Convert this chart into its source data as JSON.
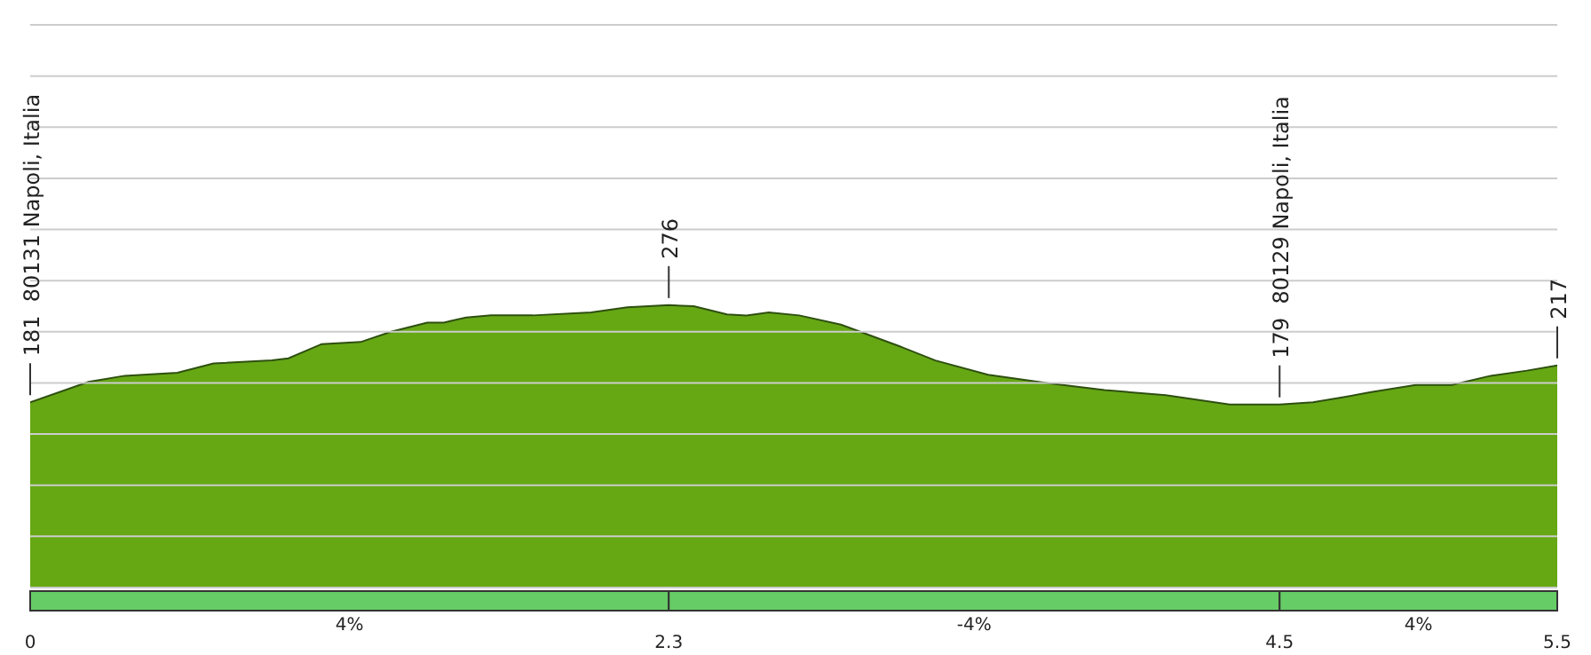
{
  "chart_data": {
    "type": "area",
    "x": [
      0,
      0.21,
      0.34,
      0.53,
      0.66,
      0.87,
      0.93,
      1.05,
      1.19,
      1.3,
      1.43,
      1.49,
      1.57,
      1.66,
      1.81,
      2.02,
      2.15,
      2.3,
      2.39,
      2.51,
      2.58,
      2.66,
      2.77,
      2.92,
      3.13,
      3.26,
      3.45,
      3.66,
      3.87,
      4.09,
      4.32,
      4.5,
      4.62,
      4.73,
      4.83,
      4.99,
      5.12,
      5.26,
      5.39,
      5.5
    ],
    "values": [
      181,
      201,
      207,
      210,
      219,
      222,
      224,
      238,
      240,
      250,
      259,
      259,
      264,
      266,
      266,
      269,
      274,
      276,
      275,
      267,
      266,
      269,
      266,
      257,
      236,
      222,
      208,
      200,
      193,
      188,
      179,
      179,
      181,
      186,
      191,
      198,
      198,
      207,
      212,
      217
    ],
    "value_labels": [
      "181  80131 Napoli, Italia",
      null,
      null,
      null,
      null,
      null,
      null,
      null,
      null,
      null,
      null,
      null,
      null,
      null,
      null,
      null,
      null,
      "276",
      null,
      null,
      null,
      null,
      null,
      null,
      null,
      null,
      null,
      null,
      null,
      null,
      null,
      "179  80129 Napoli, Italia",
      null,
      null,
      null,
      null,
      null,
      null,
      null,
      "217"
    ],
    "color": "#66a814",
    "xlim": [
      0,
      5.5
    ],
    "xticks": [
      0,
      2.3,
      4.5,
      5.5
    ],
    "ylim": [
      0,
      550
    ],
    "yticks": [
      {
        "value": 0,
        "label": null
      },
      {
        "value": 50,
        "label": null
      },
      {
        "value": 100,
        "label": null
      },
      {
        "value": 150,
        "label": null
      },
      {
        "value": 200,
        "label": null
      },
      {
        "value": 250,
        "label": null
      },
      {
        "value": 300,
        "label": null
      },
      {
        "value": 350,
        "label": null
      },
      {
        "value": 400,
        "label": null
      },
      {
        "value": 450,
        "label": null
      },
      {
        "value": 500,
        "label": null
      },
      {
        "value": 550,
        "label": null
      }
    ],
    "grid": "y",
    "annotations": [
      "4%",
      "-4%",
      "4%"
    ]
  }
}
